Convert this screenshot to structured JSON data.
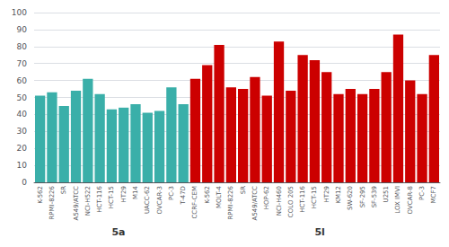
{
  "chart_data": {
    "type": "bar",
    "categories": [
      "K-562",
      "RPMI-8226",
      "SR",
      "A549/ATCC",
      "NCI-H522",
      "HCT-116",
      "HCT-15",
      "HT29",
      "M14",
      "UACC-62",
      "OVCAR-3",
      "PC-3",
      "T-47D",
      "CCRF-CEM",
      "K-562",
      "MOLT-4",
      "RPMI-8226",
      "SR",
      "A549/ATCC",
      "HOP-62",
      "NCI-H460",
      "COLO 205",
      "HCT-116",
      "HCT-15",
      "HT29",
      "KM12",
      "SW-620",
      "SF-295",
      "SF-539",
      "U251",
      "LOX IMVI",
      "OVCAR-8",
      "PC-3",
      "MCF7"
    ],
    "series": [
      {
        "name": "5a",
        "color": "#3AAFA9",
        "values": [
          51,
          53,
          45,
          54,
          61,
          52,
          43,
          44,
          46,
          41,
          42,
          56,
          46,
          null,
          null,
          null,
          null,
          null,
          null,
          null,
          null,
          null,
          null,
          null,
          null,
          null,
          null,
          null,
          null,
          null,
          null,
          null,
          null,
          null
        ]
      },
      {
        "name": "5l",
        "color": "#CC0000",
        "values": [
          null,
          null,
          null,
          null,
          null,
          null,
          null,
          null,
          null,
          null,
          null,
          null,
          null,
          61,
          69,
          81,
          56,
          55,
          62,
          51,
          83,
          54,
          75,
          72,
          65,
          52,
          55,
          52,
          55,
          65,
          87,
          60,
          52,
          75
        ]
      }
    ],
    "ylim": [
      0,
      100
    ],
    "yticks": [
      0,
      10,
      20,
      30,
      40,
      50,
      60,
      70,
      80,
      90,
      100
    ],
    "grid": true
  }
}
